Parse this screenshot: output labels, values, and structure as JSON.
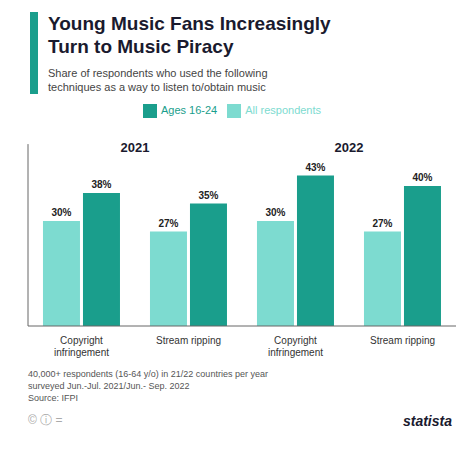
{
  "chart_data": {
    "type": "bar",
    "title": "Young Music Fans Increasingly\nTurn to Music Piracy",
    "subtitle": "Share of respondents who used the following\ntechniques as a way to listen to/obtain music",
    "footnote": "40,000+ respondents (16-64 y/o) in 21/22 countries per year\nsurveyed Jun.-Jul. 2021/Jun.- Sep. 2022\nSource: IFPI",
    "annotations": [
      "2021",
      "2022"
    ],
    "logo": "statista",
    "license": "© ⓘ =",
    "categories": [
      "Copyright\ninfringement",
      "Stream ripping",
      "Copyright\ninfringement",
      "Stream ripping"
    ],
    "series": [
      {
        "name": "All respondents",
        "color": "#7DDBD0",
        "values": [
          30,
          27,
          30,
          27
        ],
        "value_labels": [
          "30%",
          "27%",
          "30%",
          "27%"
        ]
      },
      {
        "name": "Ages 16-24",
        "color": "#1A9E8C",
        "values": [
          38,
          35,
          43,
          40
        ],
        "value_labels": [
          "38%",
          "35%",
          "43%",
          "40%"
        ]
      }
    ],
    "ylim": [
      0,
      52
    ],
    "yticks": [],
    "tick_labels": "x",
    "grid": false,
    "data_labels": true
  }
}
